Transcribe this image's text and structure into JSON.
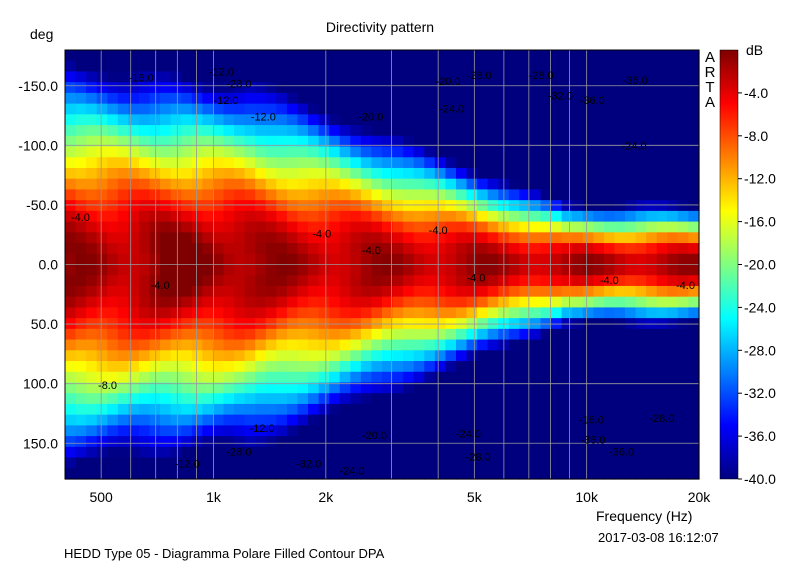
{
  "chart_data": {
    "type": "heatmap",
    "title": "Directivity pattern",
    "ylabel": "deg",
    "xlabel": "Frequency (Hz)",
    "colorbar_label": "dB",
    "x_scale": "log",
    "xlim": [
      400,
      20000
    ],
    "ylim": [
      180,
      -180
    ],
    "zlim": [
      -40,
      0
    ],
    "grid": true,
    "x_ticks": [
      {
        "value": 500,
        "label": "500"
      },
      {
        "value": 1000,
        "label": "1k"
      },
      {
        "value": 2000,
        "label": "2k"
      },
      {
        "value": 5000,
        "label": "5k"
      },
      {
        "value": 10000,
        "label": "10k"
      },
      {
        "value": 20000,
        "label": "20k"
      }
    ],
    "y_ticks": [
      {
        "value": -150,
        "label": "-150.0"
      },
      {
        "value": -100,
        "label": "-100.0"
      },
      {
        "value": -50,
        "label": "-50.0"
      },
      {
        "value": 0,
        "label": "0.0"
      },
      {
        "value": 50,
        "label": "50.0"
      },
      {
        "value": 100,
        "label": "100.0"
      },
      {
        "value": 150,
        "label": "150.0"
      }
    ],
    "colorbar_ticks": [
      {
        "value": -4,
        "label": "-4.0"
      },
      {
        "value": -8,
        "label": "-8.0"
      },
      {
        "value": -12,
        "label": "-12.0"
      },
      {
        "value": -16,
        "label": "-16.0"
      },
      {
        "value": -20,
        "label": "-20.0"
      },
      {
        "value": -24,
        "label": "-24.0"
      },
      {
        "value": -28,
        "label": "-28.0"
      },
      {
        "value": -32,
        "label": "-32.0"
      },
      {
        "value": -36,
        "label": "-36.0"
      },
      {
        "value": -40,
        "label": "-40.0"
      }
    ],
    "colormap": [
      "#00007f",
      "#0000ff",
      "#0080ff",
      "#00ffff",
      "#80ff80",
      "#ffff00",
      "#ff8000",
      "#ff0000",
      "#7f0000"
    ],
    "contour_labels": [
      {
        "freq": 640,
        "angle": -157,
        "label": "-16.0"
      },
      {
        "freq": 1050,
        "angle": -162,
        "label": "-12.0"
      },
      {
        "freq": 1170,
        "angle": -152,
        "label": "-28.0"
      },
      {
        "freq": 1080,
        "angle": -138,
        "label": "-12.0"
      },
      {
        "freq": 1360,
        "angle": -124,
        "label": "-12.0"
      },
      {
        "freq": 2640,
        "angle": -124,
        "label": "-20.0"
      },
      {
        "freq": 4250,
        "angle": -154,
        "label": "-20.0"
      },
      {
        "freq": 5150,
        "angle": -159,
        "label": "-28.0"
      },
      {
        "freq": 4350,
        "angle": -131,
        "label": "-24.0"
      },
      {
        "freq": 7550,
        "angle": -159,
        "label": "-28.0"
      },
      {
        "freq": 8500,
        "angle": -142,
        "label": "-32.0"
      },
      {
        "freq": 10350,
        "angle": -138,
        "label": "-36.0"
      },
      {
        "freq": 13500,
        "angle": -155,
        "label": "-36.0"
      },
      {
        "freq": 13400,
        "angle": -100,
        "label": "-24.0"
      },
      {
        "freq": 440,
        "angle": -40,
        "label": "-4.0"
      },
      {
        "freq": 720,
        "angle": 17,
        "label": "-4.0"
      },
      {
        "freq": 1950,
        "angle": -26,
        "label": "-4.0"
      },
      {
        "freq": 2650,
        "angle": -12,
        "label": "-4.0"
      },
      {
        "freq": 4000,
        "angle": -29,
        "label": "-4.0"
      },
      {
        "freq": 5050,
        "angle": 11,
        "label": "-4.0"
      },
      {
        "freq": 11500,
        "angle": 13,
        "label": "-4.0"
      },
      {
        "freq": 18400,
        "angle": 17,
        "label": "-4.0"
      },
      {
        "freq": 520,
        "angle": 101,
        "label": "-8.0"
      },
      {
        "freq": 1350,
        "angle": 137,
        "label": "-12.0"
      },
      {
        "freq": 2700,
        "angle": 143,
        "label": "-20.0"
      },
      {
        "freq": 4820,
        "angle": 142,
        "label": "-24.0"
      },
      {
        "freq": 10300,
        "angle": 130,
        "label": "-16.0"
      },
      {
        "freq": 10400,
        "angle": 147,
        "label": "-36.0"
      },
      {
        "freq": 15900,
        "angle": 129,
        "label": "-28.0"
      },
      {
        "freq": 1170,
        "angle": 157,
        "label": "-28.0"
      },
      {
        "freq": 1800,
        "angle": 167,
        "label": "-32.0"
      },
      {
        "freq": 5120,
        "angle": 161,
        "label": "-28.0"
      },
      {
        "freq": 2350,
        "angle": 173,
        "label": "-24.0"
      },
      {
        "freq": 12400,
        "angle": 157,
        "label": "-36.0"
      },
      {
        "freq": 850,
        "angle": 167,
        "label": "-12.0"
      }
    ]
  },
  "brand_text": "ARTA",
  "timestamp": "2017-03-08  16:12:07",
  "caption": "HEDD Type 05 - Diagramma Polare Filled Contour     DPA"
}
